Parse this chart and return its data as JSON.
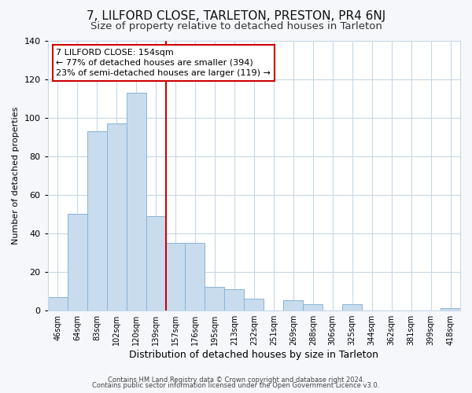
{
  "title": "7, LILFORD CLOSE, TARLETON, PRESTON, PR4 6NJ",
  "subtitle": "Size of property relative to detached houses in Tarleton",
  "xlabel": "Distribution of detached houses by size in Tarleton",
  "ylabel": "Number of detached properties",
  "bar_labels": [
    "46sqm",
    "64sqm",
    "83sqm",
    "102sqm",
    "120sqm",
    "139sqm",
    "157sqm",
    "176sqm",
    "195sqm",
    "213sqm",
    "232sqm",
    "251sqm",
    "269sqm",
    "288sqm",
    "306sqm",
    "325sqm",
    "344sqm",
    "362sqm",
    "381sqm",
    "399sqm",
    "418sqm"
  ],
  "bar_values": [
    7,
    50,
    93,
    97,
    113,
    49,
    35,
    35,
    12,
    11,
    6,
    0,
    5,
    3,
    0,
    3,
    0,
    0,
    0,
    0,
    1
  ],
  "bar_color": "#c8dcee",
  "bar_edge_color": "#8ab4d4",
  "vline_x_index": 5.5,
  "vline_color": "#cc0000",
  "annotation_title": "7 LILFORD CLOSE: 154sqm",
  "annotation_line1": "← 77% of detached houses are smaller (394)",
  "annotation_line2": "23% of semi-detached houses are larger (119) →",
  "annotation_box_color": "#ffffff",
  "annotation_box_edge": "#cc0000",
  "ylim": [
    0,
    140
  ],
  "yticks": [
    0,
    20,
    40,
    60,
    80,
    100,
    120,
    140
  ],
  "footer1": "Contains HM Land Registry data © Crown copyright and database right 2024.",
  "footer2": "Contains public sector information licensed under the Open Government Licence v3.0.",
  "background_color": "#f5f7fa",
  "plot_bg_color": "#ffffff",
  "grid_color": "#c8d8e8",
  "title_fontsize": 11,
  "subtitle_fontsize": 9.5,
  "ylabel_fontsize": 8,
  "xlabel_fontsize": 9
}
